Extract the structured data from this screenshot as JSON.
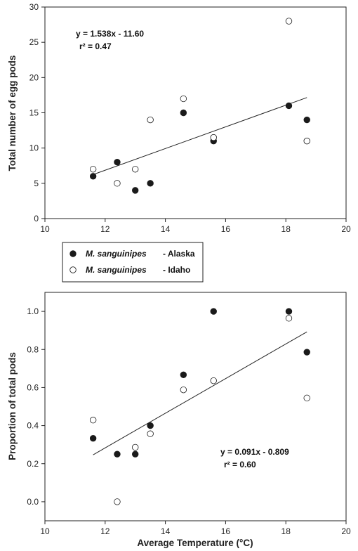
{
  "chart_data": [
    {
      "type": "scatter",
      "title": "",
      "xlabel": "",
      "ylabel": "Total number of egg pods",
      "xlim": [
        10,
        20
      ],
      "ylim": [
        0,
        30
      ],
      "xticks": [
        10,
        12,
        14,
        16,
        18,
        20
      ],
      "yticks": [
        0,
        5,
        10,
        15,
        20,
        25,
        30
      ],
      "grid": false,
      "series": [
        {
          "name": "M. sanguinipes - Alaska",
          "marker": "filled-circle",
          "x": [
            11.6,
            12.4,
            13.0,
            13.5,
            14.6,
            15.6,
            18.1,
            18.7
          ],
          "y": [
            6,
            8,
            4,
            5,
            15,
            11,
            16,
            14
          ]
        },
        {
          "name": "M. sanguinipes - Idaho",
          "marker": "open-circle",
          "x": [
            11.6,
            12.4,
            13.0,
            13.5,
            14.6,
            15.6,
            18.1,
            18.7
          ],
          "y": [
            7,
            5,
            7,
            14,
            17,
            11.5,
            28,
            11
          ]
        }
      ],
      "fit_line": {
        "slope": 1.538,
        "intercept": -11.6,
        "x_range": [
          11.6,
          18.7
        ]
      },
      "annotations": [
        "y = 1.538x - 11.60",
        "r² = 0.47"
      ]
    },
    {
      "type": "scatter",
      "title": "",
      "xlabel": "Average Temperature (°C)",
      "ylabel": "Proportion of total pods",
      "xlim": [
        10,
        20
      ],
      "ylim": [
        -0.1,
        1.1
      ],
      "xticks": [
        10,
        12,
        14,
        16,
        18,
        20
      ],
      "yticks": [
        0.0,
        0.2,
        0.4,
        0.6,
        0.8,
        1.0
      ],
      "grid": false,
      "series": [
        {
          "name": "M. sanguinipes - Alaska",
          "marker": "filled-circle",
          "x": [
            11.6,
            12.4,
            13.0,
            13.5,
            14.6,
            15.6,
            18.1,
            18.7
          ],
          "y": [
            0.333,
            0.25,
            0.25,
            0.4,
            0.667,
            1.0,
            1.0,
            0.786
          ]
        },
        {
          "name": "M. sanguinipes - Idaho",
          "marker": "open-circle",
          "x": [
            11.6,
            12.4,
            13.0,
            13.5,
            14.6,
            15.6,
            18.1,
            18.7
          ],
          "y": [
            0.429,
            0.0,
            0.286,
            0.357,
            0.588,
            0.636,
            0.964,
            0.545
          ]
        }
      ],
      "fit_line": {
        "slope": 0.091,
        "intercept": -0.809,
        "x_range": [
          11.6,
          18.7
        ]
      },
      "annotations": [
        "y = 0.091x - 0.809",
        "r² = 0.60"
      ]
    }
  ],
  "legend": {
    "placement": "between panels",
    "entries": [
      {
        "species": "M. sanguinipes",
        "site": "- Alaska",
        "marker": "filled-circle"
      },
      {
        "species": "M. sanguinipes",
        "site": "- Idaho",
        "marker": "open-circle"
      }
    ]
  },
  "tick_format": {
    "top": {
      "x": [
        "10",
        "12",
        "14",
        "16",
        "18",
        "20"
      ],
      "y": [
        "0",
        "5",
        "10",
        "15",
        "20",
        "25",
        "30"
      ]
    },
    "bottom": {
      "x": [
        "10",
        "12",
        "14",
        "16",
        "18",
        "20"
      ],
      "y": [
        "0.0",
        "0.2",
        "0.4",
        "0.6",
        "0.8",
        "1.0"
      ]
    }
  },
  "colors": {
    "alaska_marker": "#1a1a1a",
    "idaho_marker": "#ffffff",
    "axis": "#222222",
    "fit_line": "#222222"
  }
}
